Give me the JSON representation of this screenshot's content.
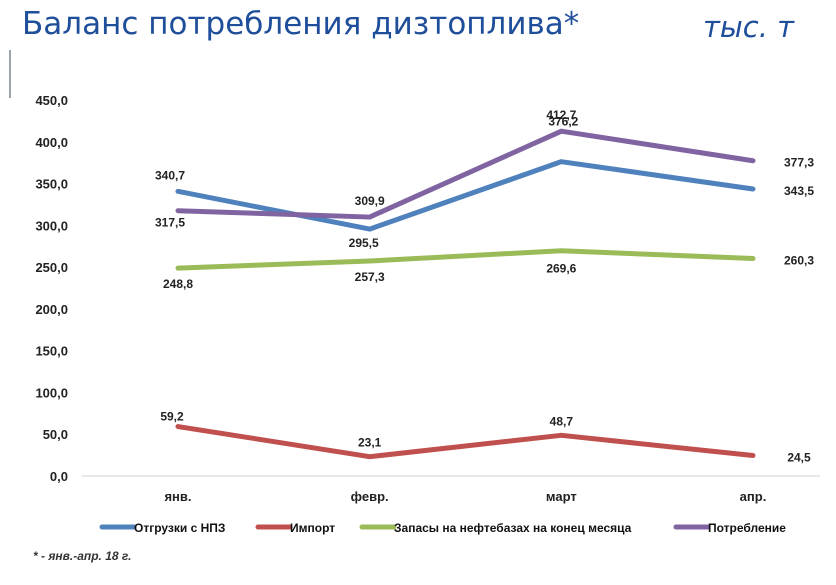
{
  "header": {
    "title": "Баланс потребления дизтоплива*",
    "units": "тыс. т"
  },
  "footnote": "* - янв.-апр. 18 г.",
  "chart_data": {
    "type": "line",
    "categories": [
      "янв.",
      "февр.",
      "март",
      "апр."
    ],
    "ylim": [
      0,
      450
    ],
    "yticks": [
      "0,0",
      "50,0",
      "100,0",
      "150,0",
      "200,0",
      "250,0",
      "300,0",
      "350,0",
      "400,0",
      "450,0"
    ],
    "grid": false,
    "legend_position": "bottom",
    "series": [
      {
        "name": "Отгрузки с НПЗ",
        "color": "#4f81bd",
        "values": [
          340.7,
          295.5,
          376.2,
          343.5
        ],
        "labels": [
          "340,7",
          "295,5",
          "376,2",
          "343,5"
        ]
      },
      {
        "name": "Импорт",
        "color": "#c0504d",
        "values": [
          59.2,
          23.1,
          48.7,
          24.5
        ],
        "labels": [
          "59,2",
          "23,1",
          "48,7",
          "24,5"
        ]
      },
      {
        "name": "Запасы на нефтебазах на конец месяца",
        "color": "#9bbb59",
        "values": [
          248.8,
          257.3,
          269.6,
          260.3
        ],
        "labels": [
          "248,8",
          "257,3",
          "269,6",
          "260,3"
        ]
      },
      {
        "name": "Потребление",
        "color": "#8064a2",
        "values": [
          317.5,
          309.9,
          412.7,
          377.3
        ],
        "labels": [
          "317,5",
          "309,9",
          "412,7",
          "377,3"
        ]
      }
    ]
  }
}
